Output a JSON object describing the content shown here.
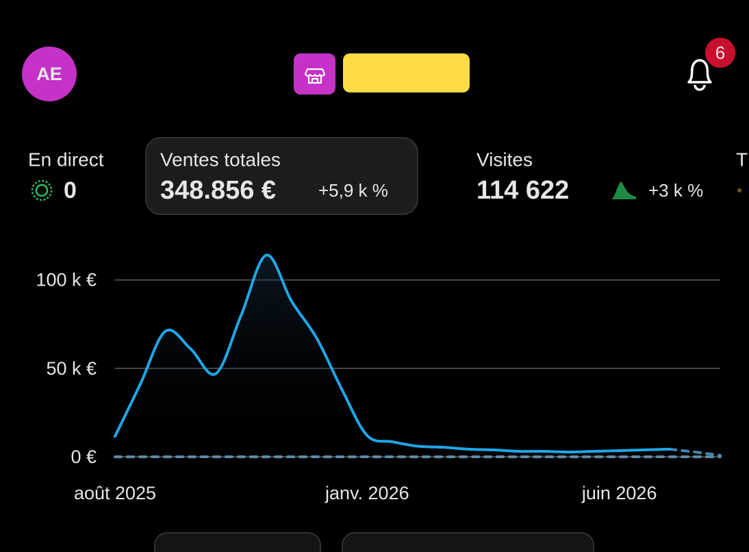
{
  "header": {
    "avatar": "AE",
    "notification_count": "6"
  },
  "metrics": [
    {
      "label": "En direct",
      "value": "0"
    },
    {
      "label": "Ventes totales",
      "value": "348.856 €",
      "change": "+5,9 k %"
    },
    {
      "label": "Visites",
      "value": "114 622",
      "change": "+3 k %"
    },
    {
      "label": "T"
    }
  ],
  "chart_data": {
    "type": "line",
    "categories": [
      "août 2025",
      null,
      null,
      null,
      null,
      null,
      null,
      null,
      null,
      null,
      "janv. 2026",
      null,
      null,
      null,
      null,
      null,
      null,
      null,
      null,
      null,
      "juin 2026",
      null,
      null,
      null,
      null
    ],
    "series": [
      {
        "color": "#1ea7e8",
        "values": [
          11600,
          41000,
          71000,
          61000,
          47000,
          80000,
          114000,
          88000,
          67000,
          38000,
          12000,
          8500,
          6000,
          5400,
          4300,
          3900,
          3100,
          3100,
          2700,
          3100,
          3500,
          3900,
          4300,
          null,
          null
        ]
      },
      {
        "color": "#3f88b0",
        "dashed": true,
        "values": [
          null,
          null,
          null,
          null,
          null,
          null,
          null,
          null,
          null,
          null,
          null,
          null,
          null,
          null,
          null,
          null,
          null,
          null,
          null,
          null,
          null,
          null,
          4300,
          2700,
          800
        ]
      },
      {
        "color": "#5f8aa6",
        "dashed": true,
        "values": [
          0,
          0,
          0,
          0,
          0,
          0,
          0,
          0,
          0,
          0,
          0,
          0,
          0,
          0,
          0,
          0,
          0,
          0,
          0,
          0,
          0,
          0,
          0,
          0,
          0
        ]
      }
    ],
    "ylim": [
      0,
      115000
    ],
    "yticks": [
      {
        "value": 0,
        "label": "0 €"
      },
      {
        "value": 50000,
        "label": "50 k €"
      },
      {
        "value": 100000,
        "label": "100 k €"
      }
    ],
    "grid": true
  }
}
